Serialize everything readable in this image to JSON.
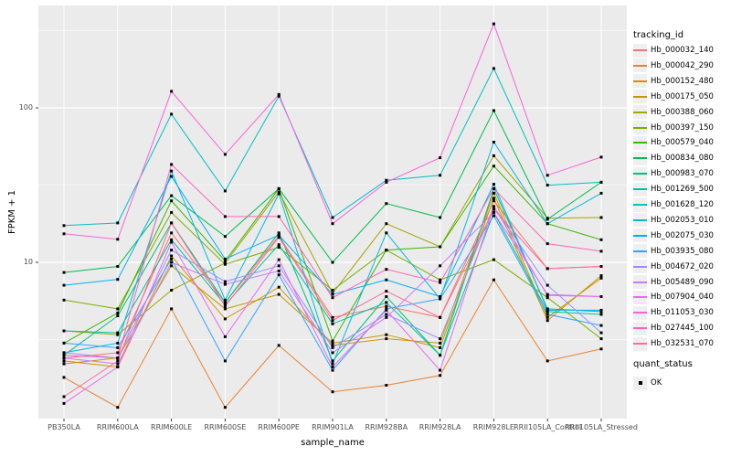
{
  "figure": {
    "background": "#ffffff",
    "panel_bg": "#ebebeb",
    "grid_color": "#ffffff",
    "tick_color": "#333333",
    "tick_label_color": "#4d4d4d",
    "legend_key_bg": "#efefef",
    "legend": {
      "title": "tracking_id"
    },
    "legend2": {
      "title": "quant_status",
      "items": [
        "OK"
      ]
    }
  },
  "chart_data": {
    "type": "line",
    "title": "",
    "xlabel": "sample_name",
    "ylabel": "FPKM + 1",
    "y_scale": "log10",
    "ylim": [
      1,
      400
    ],
    "y_ticks": [
      100,
      10
    ],
    "y_minor_ticks": [
      3.1623,
      31.623,
      316.23
    ],
    "grid": true,
    "legend_position": "right",
    "marker": "black-square",
    "quant_status": "OK",
    "categories": [
      "PB350LA",
      "RRIM600LA",
      "RRIM600LE",
      "RRIM600SE",
      "RRIM600PE",
      "RRIM901LA",
      "RRIM928BA",
      "RRIM928LA",
      "RRIM928LE",
      "RRII105LA_Control",
      "RRII105LA_Stressed"
    ],
    "series": [
      {
        "name": "Hb_000032_140",
        "color": "#F8766D",
        "values": [
          2.4,
          2.6,
          15.5,
          5.5,
          14.8,
          4.4,
          5.2,
          4.4,
          25,
          9.1,
          9.4
        ]
      },
      {
        "name": "Hb_000042_290",
        "color": "#EA8331",
        "values": [
          1.8,
          1.15,
          5.0,
          1.15,
          2.9,
          1.45,
          1.6,
          1.85,
          7.7,
          2.3,
          2.75
        ]
      },
      {
        "name": "Hb_000152_480",
        "color": "#D89000",
        "values": [
          2.3,
          2.1,
          11.0,
          4.3,
          6.9,
          2.9,
          3.2,
          3.0,
          28,
          4.4,
          7.9
        ]
      },
      {
        "name": "Hb_000175_050",
        "color": "#C09B00",
        "values": [
          2.2,
          2.4,
          9.5,
          5.0,
          6.2,
          3.0,
          3.4,
          2.8,
          26,
          4.2,
          8.2
        ]
      },
      {
        "name": "Hb_000388_060",
        "color": "#A3A500",
        "values": [
          3.6,
          3.4,
          6.6,
          9.9,
          28.5,
          6.3,
          17.8,
          12.6,
          49,
          19.3,
          19.5
        ]
      },
      {
        "name": "Hb_000397_150",
        "color": "#7CAE00",
        "values": [
          5.7,
          5.0,
          21.0,
          9.7,
          12.5,
          6.6,
          12.0,
          7.7,
          10.4,
          5.9,
          3.2
        ]
      },
      {
        "name": "Hb_000579_040",
        "color": "#39B600",
        "values": [
          3.0,
          4.7,
          25.0,
          10.2,
          30.0,
          3.1,
          12.0,
          12.6,
          42,
          17.8,
          14.0
        ]
      },
      {
        "name": "Hb_000834_080",
        "color": "#00BB4E",
        "values": [
          8.6,
          9.4,
          27.0,
          14.7,
          30.0,
          10.0,
          24.0,
          19.5,
          96,
          19.0,
          33.0
        ]
      },
      {
        "name": "Hb_000983_070",
        "color": "#00BF7D",
        "values": [
          2.5,
          4.5,
          18.0,
          5.5,
          15.5,
          2.3,
          6.0,
          2.5,
          30,
          5.0,
          4.8
        ]
      },
      {
        "name": "Hb_001269_500",
        "color": "#00C1A3",
        "values": [
          3.6,
          3.5,
          14.0,
          5.3,
          13.0,
          4.0,
          5.5,
          2.5,
          21,
          4.8,
          4.6
        ]
      },
      {
        "name": "Hb_001628_120",
        "color": "#00BFC4",
        "values": [
          17.3,
          18.0,
          91,
          29,
          119,
          19.5,
          34,
          36.6,
          180,
          31.6,
          33
        ]
      },
      {
        "name": "Hb_002053_010",
        "color": "#00BAE0",
        "values": [
          2.6,
          3.0,
          39,
          5.7,
          27.8,
          2.2,
          15.5,
          5.8,
          60,
          17.8,
          28
        ]
      },
      {
        "name": "Hb_002075_030",
        "color": "#00B0F6",
        "values": [
          7.1,
          7.75,
          36,
          10.5,
          15.0,
          6.2,
          7.7,
          6.0,
          32,
          4.9,
          4.9
        ]
      },
      {
        "name": "Hb_003935_080",
        "color": "#35A2FF",
        "values": [
          3.0,
          2.8,
          10.5,
          2.3,
          8.3,
          2.0,
          5.0,
          5.8,
          20,
          4.6,
          3.9
        ]
      },
      {
        "name": "Hb_004672_020",
        "color": "#9590FF",
        "values": [
          2.6,
          2.4,
          12.0,
          7.5,
          9.5,
          2.8,
          4.6,
          3.2,
          23,
          7.1,
          3.5
        ]
      },
      {
        "name": "Hb_005489_090",
        "color": "#C77CFF",
        "values": [
          2.4,
          2.2,
          10.0,
          7.2,
          8.8,
          2.6,
          4.4,
          9.5,
          21,
          6.2,
          6.0
        ]
      },
      {
        "name": "Hb_007904_040",
        "color": "#E76BF3",
        "values": [
          1.22,
          2.1,
          13.5,
          3.3,
          10.4,
          2.1,
          4.9,
          2.0,
          23,
          6.1,
          6.0
        ]
      },
      {
        "name": "Hb_011053_030",
        "color": "#FA62DB",
        "values": [
          15.3,
          14.1,
          128,
          50,
          122,
          17.8,
          33,
          47.5,
          350,
          36.6,
          48
        ]
      },
      {
        "name": "Hb_027445_100",
        "color": "#FF62BC",
        "values": [
          2.5,
          2.4,
          43,
          19.8,
          19.8,
          5.9,
          9.0,
          7.4,
          30,
          13.2,
          11.8
        ]
      },
      {
        "name": "Hb_032531_070",
        "color": "#FF6A98",
        "values": [
          1.35,
          2.3,
          18.0,
          5.2,
          14.5,
          4.2,
          6.5,
          4.4,
          22,
          9.1,
          9.4
        ]
      }
    ]
  }
}
